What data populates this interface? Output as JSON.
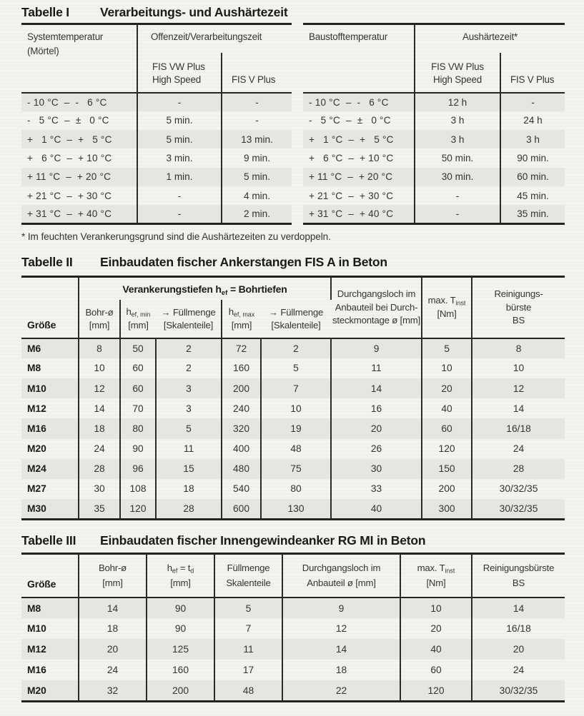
{
  "table1": {
    "label": "Tabelle I",
    "title": "Verarbeitungs- und Aushärtezeit",
    "left": {
      "col1_header": "Systemtemperatur\n(Mörtel)",
      "group_header": "Offenzeit/Verarbeitungszeit",
      "sub_headers": [
        "FIS VW Plus\nHigh Speed",
        "FIS V Plus"
      ],
      "rows": [
        [
          "- 10 °C  –  -   6 °C",
          "-",
          "-"
        ],
        [
          "-   5 °C  –  ±   0 °C",
          "5 min.",
          "-"
        ],
        [
          "+   1 °C  –  +   5 °C",
          "5 min.",
          "13 min."
        ],
        [
          "+   6 °C  –  + 10 °C",
          "3 min.",
          "9 min."
        ],
        [
          "+ 11 °C  –  + 20 °C",
          "1 min.",
          "5 min."
        ],
        [
          "+ 21 °C  –  + 30 °C",
          "-",
          "4 min."
        ],
        [
          "+ 31 °C  –  + 40 °C",
          "-",
          "2 min."
        ]
      ]
    },
    "right": {
      "col1_header": "Baustofftemperatur",
      "group_header": "Aushärtezeit*",
      "sub_headers": [
        "FIS VW Plus\nHigh Speed",
        "FIS V Plus"
      ],
      "rows": [
        [
          "- 10 °C  –  -   6 °C",
          "12 h",
          "-"
        ],
        [
          "-   5 °C  –  ±   0 °C",
          "3 h",
          "24 h"
        ],
        [
          "+   1 °C  –  +   5 °C",
          "3 h",
          "3 h"
        ],
        [
          "+   6 °C  –  + 10 °C",
          "50 min.",
          "90 min."
        ],
        [
          "+ 11 °C  –  + 20 °C",
          "30 min.",
          "60 min."
        ],
        [
          "+ 21 °C  –  + 30 °C",
          "-",
          "45 min."
        ],
        [
          "+ 31 °C  –  + 40 °C",
          "-",
          "35 min."
        ]
      ]
    },
    "footnote": "* Im feuchten Verankerungsgrund sind die Aushärtezeiten zu verdoppeln."
  },
  "table2": {
    "label": "Tabelle II",
    "title": "Einbaudaten fischer Ankerstangen FIS A in Beton",
    "corner_header": "Größe",
    "group_header": "Verankerungstiefen h~ef~ = Bohrtiefen",
    "group_sub_headers": [
      "Bohr-ø\n[mm]",
      "h~ef, min~\n[mm]",
      "→ Füllmenge\n[Skalenteile]",
      "h~ef, max~\n[mm]",
      "→ Füllmenge\n[Skalenteile]"
    ],
    "tail_headers": [
      "Durchgangsloch im\nAnbauteil bei Durch-\nsteckmontage ø [mm]",
      "max. T~inst~\n[Nm]",
      "Reinigungs-\nbürste\nBS"
    ],
    "rows": [
      [
        "M6",
        "8",
        "50",
        "2",
        "72",
        "2",
        "9",
        "5",
        "8"
      ],
      [
        "M8",
        "10",
        "60",
        "2",
        "160",
        "5",
        "11",
        "10",
        "10"
      ],
      [
        "M10",
        "12",
        "60",
        "3",
        "200",
        "7",
        "14",
        "20",
        "12"
      ],
      [
        "M12",
        "14",
        "70",
        "3",
        "240",
        "10",
        "16",
        "40",
        "14"
      ],
      [
        "M16",
        "18",
        "80",
        "5",
        "320",
        "19",
        "20",
        "60",
        "16/18"
      ],
      [
        "M20",
        "24",
        "90",
        "11",
        "400",
        "48",
        "26",
        "120",
        "24"
      ],
      [
        "M24",
        "28",
        "96",
        "15",
        "480",
        "75",
        "30",
        "150",
        "28"
      ],
      [
        "M27",
        "30",
        "108",
        "18",
        "540",
        "80",
        "33",
        "200",
        "30/32/35"
      ],
      [
        "M30",
        "35",
        "120",
        "28",
        "600",
        "130",
        "40",
        "300",
        "30/32/35"
      ]
    ]
  },
  "table3": {
    "label": "Tabelle III",
    "title": "Einbaudaten fischer Innengewindeanker RG MI in Beton",
    "headers": [
      "Größe",
      "Bohr-ø\n[mm]",
      "h~ef~ = t~d~\n[mm]",
      "Füllmenge\nSkalenteile",
      "Durchgangsloch im\nAnbauteil ø [mm]",
      "max. T~inst~\n[Nm]",
      "Reinigungsbürste\nBS"
    ],
    "rows": [
      [
        "M8",
        "14",
        "90",
        "5",
        "9",
        "10",
        "14"
      ],
      [
        "M10",
        "18",
        "90",
        "7",
        "12",
        "20",
        "16/18"
      ],
      [
        "M12",
        "20",
        "125",
        "11",
        "14",
        "40",
        "20"
      ],
      [
        "M16",
        "24",
        "160",
        "17",
        "18",
        "60",
        "24"
      ],
      [
        "M20",
        "32",
        "200",
        "48",
        "22",
        "120",
        "30/32/35"
      ]
    ]
  }
}
